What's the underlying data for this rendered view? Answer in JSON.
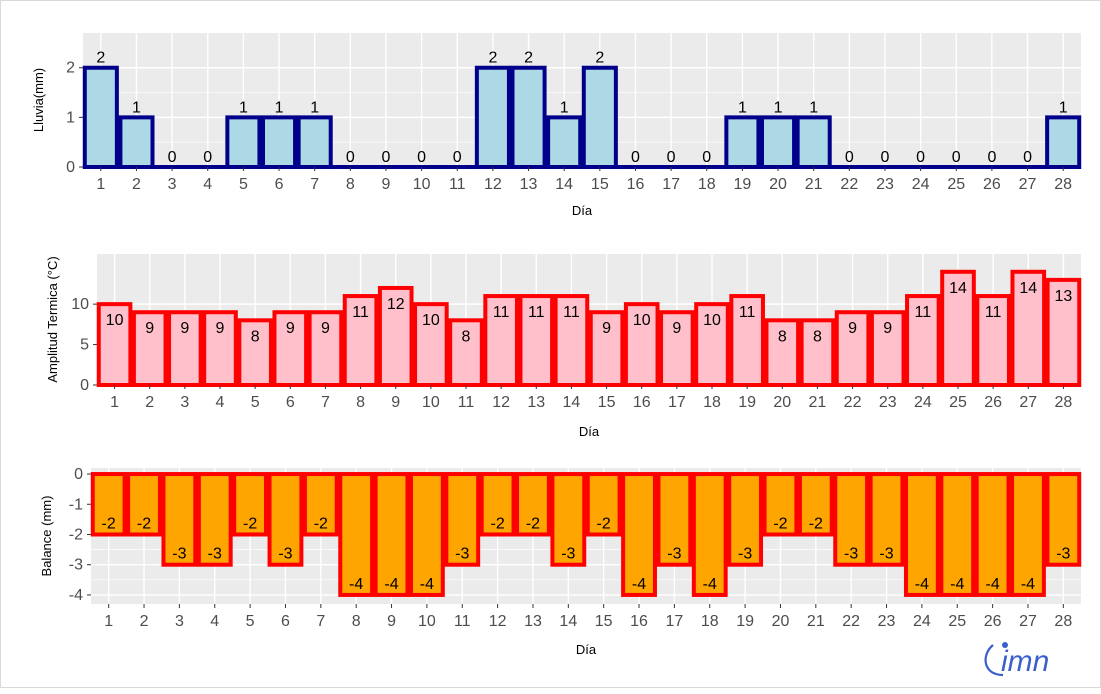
{
  "colors": {
    "panel": "#ebebeb",
    "grid": "#ffffff",
    "rain_fill": "#add8e6",
    "rain_stroke": "#00008b",
    "amp_fill": "#ffc0cb",
    "amp_stroke": "#ff0000",
    "bal_fill": "#ffa500",
    "bal_stroke": "#ff0000",
    "logo": "#3a5fcd"
  },
  "logo": {
    "text": "imn"
  },
  "chart_data": [
    {
      "type": "bar",
      "ylabel": "Lluvia(mm)",
      "xlabel": "Día",
      "ylim": [
        0,
        2.7
      ],
      "yticks": [
        0,
        1,
        2
      ],
      "grid": true,
      "categories": [
        1,
        2,
        3,
        4,
        5,
        6,
        7,
        8,
        9,
        10,
        11,
        12,
        13,
        14,
        15,
        16,
        17,
        18,
        19,
        20,
        21,
        22,
        23,
        24,
        25,
        26,
        27,
        28
      ],
      "values": [
        2,
        1,
        0,
        0,
        1,
        1,
        1,
        0,
        0,
        0,
        0,
        2,
        2,
        1,
        2,
        0,
        0,
        0,
        1,
        1,
        1,
        0,
        0,
        0,
        0,
        0,
        0,
        1
      ],
      "label_position": "above"
    },
    {
      "type": "bar",
      "ylabel": "Amplitud Termica (°C)",
      "xlabel": "Día",
      "ylim": [
        0,
        16.2
      ],
      "yticks": [
        0,
        5,
        10
      ],
      "grid": true,
      "categories": [
        1,
        2,
        3,
        4,
        5,
        6,
        7,
        8,
        9,
        10,
        11,
        12,
        13,
        14,
        15,
        16,
        17,
        18,
        19,
        20,
        21,
        22,
        23,
        24,
        25,
        26,
        27,
        28
      ],
      "values": [
        10,
        9,
        9,
        9,
        8,
        9,
        9,
        11,
        12,
        10,
        8,
        11,
        11,
        11,
        9,
        10,
        9,
        10,
        11,
        8,
        8,
        9,
        9,
        11,
        14,
        11,
        14,
        13
      ],
      "label_position": "inside_top"
    },
    {
      "type": "bar",
      "ylabel": "Balance (mm)",
      "xlabel": "Día",
      "ylim": [
        -4.3,
        0.2
      ],
      "yticks": [
        0,
        -1,
        -2,
        -3,
        -4
      ],
      "grid": true,
      "categories": [
        1,
        2,
        3,
        4,
        5,
        6,
        7,
        8,
        9,
        10,
        11,
        12,
        13,
        14,
        15,
        16,
        17,
        18,
        19,
        20,
        21,
        22,
        23,
        24,
        25,
        26,
        27,
        28
      ],
      "values": [
        -2,
        -2,
        -3,
        -3,
        -2,
        -3,
        -2,
        -4,
        -4,
        -4,
        -3,
        -2,
        -2,
        -3,
        -2,
        -4,
        -3,
        -4,
        -3,
        -2,
        -2,
        -3,
        -3,
        -4,
        -4,
        -4,
        -4,
        -3
      ],
      "label_position": "inside_bottom"
    }
  ]
}
